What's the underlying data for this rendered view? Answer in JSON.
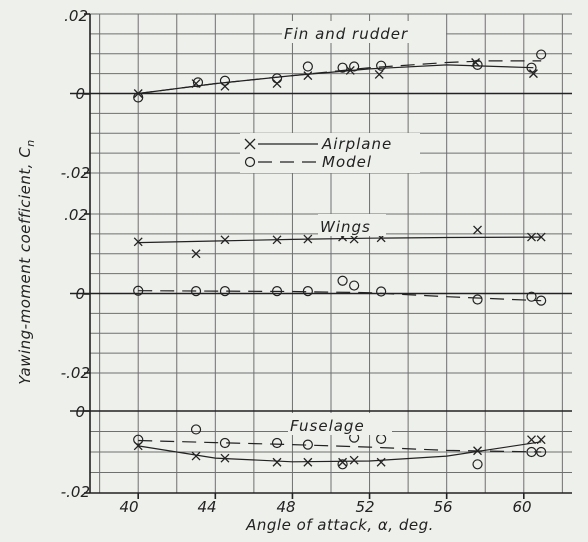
{
  "chart_data": {
    "type": "scatter",
    "xlabel": "Angle of attack, α, deg.",
    "ylabel": "Yawing-moment coefficient, C",
    "ylabel_sub": "n",
    "xlim": [
      37.5,
      62.5
    ],
    "x_ticks": [
      "40",
      "44",
      "48",
      "52",
      "56",
      "60"
    ],
    "grid": true,
    "legend": {
      "placement": "upper-center",
      "entries": [
        {
          "label": "Airplane",
          "marker": "x",
          "line": "solid"
        },
        {
          "label": "Model",
          "marker": "o",
          "line": "dashed"
        }
      ]
    },
    "panels": [
      {
        "title": "Fin and rudder",
        "ylim": [
          -0.02,
          0.02
        ],
        "y_ticks": [
          ".02",
          "0",
          "-.02"
        ],
        "series": [
          {
            "name": "Airplane",
            "marker": "x",
            "points": [
              [
                40.0,
                0.0
              ],
              [
                43.0,
                0.0025
              ],
              [
                44.5,
                0.0018
              ],
              [
                47.2,
                0.0025
              ],
              [
                48.8,
                0.0045
              ],
              [
                51.0,
                0.0058
              ],
              [
                52.5,
                0.0048
              ],
              [
                57.5,
                0.0078
              ],
              [
                60.5,
                0.005
              ]
            ],
            "curve": [
              [
                40.0,
                0.0
              ],
              [
                44.0,
                0.0025
              ],
              [
                48.0,
                0.0045
              ],
              [
                52.0,
                0.0062
              ],
              [
                56.0,
                0.0072
              ],
              [
                60.5,
                0.0065
              ]
            ]
          },
          {
            "name": "Model",
            "marker": "o",
            "points": [
              [
                40.0,
                -0.001
              ],
              [
                43.1,
                0.0028
              ],
              [
                44.5,
                0.0032
              ],
              [
                47.2,
                0.0038
              ],
              [
                48.8,
                0.0068
              ],
              [
                50.6,
                0.0065
              ],
              [
                51.2,
                0.0068
              ],
              [
                52.6,
                0.007
              ],
              [
                57.6,
                0.0072
              ],
              [
                60.4,
                0.0065
              ],
              [
                60.9,
                0.0098
              ]
            ],
            "curve": [
              [
                40.0,
                0.0
              ],
              [
                44.0,
                0.0025
              ],
              [
                48.0,
                0.0045
              ],
              [
                52.0,
                0.0065
              ],
              [
                56.0,
                0.0078
              ],
              [
                58.0,
                0.0082
              ],
              [
                60.9,
                0.0082
              ]
            ]
          }
        ]
      },
      {
        "title": "Wings",
        "ylim": [
          -0.02,
          0.02
        ],
        "y_ticks": [
          ".02",
          "0",
          "-.02"
        ],
        "series": [
          {
            "name": "Airplane",
            "marker": "x",
            "points": [
              [
                40.0,
                0.013
              ],
              [
                43.0,
                0.01
              ],
              [
                44.5,
                0.0135
              ],
              [
                47.2,
                0.0135
              ],
              [
                48.8,
                0.0137
              ],
              [
                50.6,
                0.0142
              ],
              [
                51.2,
                0.0137
              ],
              [
                52.6,
                0.014
              ],
              [
                57.6,
                0.016
              ],
              [
                60.4,
                0.0142
              ],
              [
                60.9,
                0.0142
              ]
            ],
            "curve": [
              [
                40.0,
                0.0128
              ],
              [
                44.0,
                0.0132
              ],
              [
                48.0,
                0.0136
              ],
              [
                52.0,
                0.0139
              ],
              [
                56.0,
                0.0141
              ],
              [
                60.9,
                0.0142
              ]
            ]
          },
          {
            "name": "Model",
            "marker": "o",
            "points": [
              [
                40.0,
                0.0007
              ],
              [
                43.0,
                0.0006
              ],
              [
                44.5,
                0.0006
              ],
              [
                47.2,
                0.0006
              ],
              [
                48.8,
                0.0006
              ],
              [
                50.6,
                0.0032
              ],
              [
                51.2,
                0.002
              ],
              [
                52.6,
                0.0005
              ],
              [
                57.6,
                -0.0015
              ],
              [
                60.4,
                -0.0008
              ],
              [
                60.9,
                -0.0018
              ]
            ],
            "curve": [
              [
                40.0,
                0.0007
              ],
              [
                44.0,
                0.0006
              ],
              [
                48.0,
                0.0005
              ],
              [
                52.0,
                0.0002
              ],
              [
                56.0,
                -0.0008
              ],
              [
                60.9,
                -0.0018
              ]
            ]
          }
        ]
      },
      {
        "title": "Fuselage",
        "ylim": [
          -0.02,
          0.0
        ],
        "y_ticks": [
          "0",
          "-.02"
        ],
        "series": [
          {
            "name": "Airplane",
            "marker": "x",
            "points": [
              [
                40.0,
                -0.0085
              ],
              [
                43.0,
                -0.011
              ],
              [
                44.5,
                -0.0115
              ],
              [
                47.2,
                -0.0125
              ],
              [
                48.8,
                -0.0125
              ],
              [
                50.6,
                -0.0125
              ],
              [
                51.2,
                -0.012
              ],
              [
                52.6,
                -0.0125
              ],
              [
                57.6,
                -0.0097
              ],
              [
                60.4,
                -0.007
              ],
              [
                60.9,
                -0.007
              ]
            ],
            "curve": [
              [
                40.0,
                -0.0085
              ],
              [
                44.0,
                -0.0115
              ],
              [
                48.0,
                -0.0124
              ],
              [
                52.0,
                -0.0122
              ],
              [
                56.0,
                -0.011
              ],
              [
                60.9,
                -0.0075
              ]
            ]
          },
          {
            "name": "Model",
            "marker": "o",
            "points": [
              [
                40.0,
                -0.007
              ],
              [
                43.0,
                -0.0045
              ],
              [
                44.5,
                -0.0078
              ],
              [
                47.2,
                -0.0078
              ],
              [
                48.8,
                -0.0082
              ],
              [
                50.6,
                -0.013
              ],
              [
                51.2,
                -0.0065
              ],
              [
                52.6,
                -0.0068
              ],
              [
                57.6,
                -0.013
              ],
              [
                60.4,
                -0.01
              ],
              [
                60.9,
                -0.01
              ]
            ],
            "curve": [
              [
                40.0,
                -0.0072
              ],
              [
                44.0,
                -0.0077
              ],
              [
                48.0,
                -0.0082
              ],
              [
                52.0,
                -0.0088
              ],
              [
                56.0,
                -0.0096
              ],
              [
                60.9,
                -0.01
              ]
            ]
          }
        ]
      }
    ]
  }
}
